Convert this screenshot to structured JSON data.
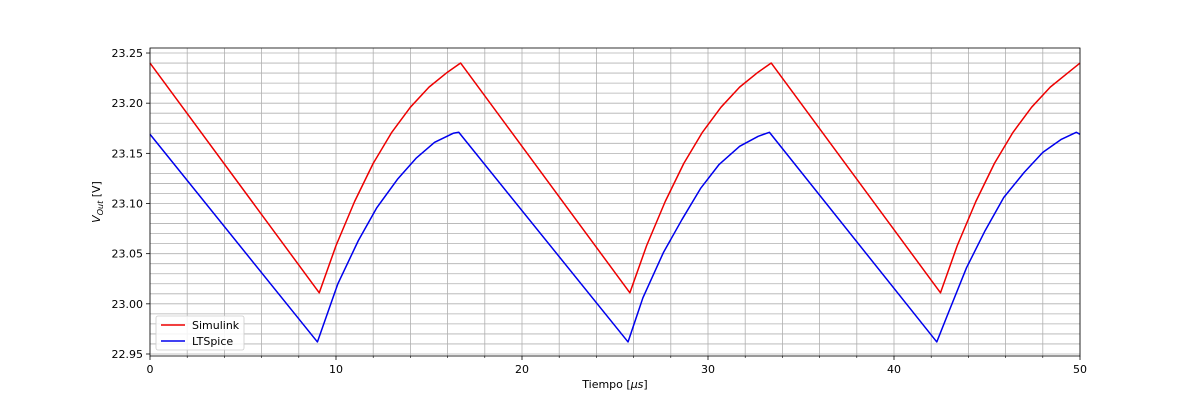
{
  "chart_data": {
    "type": "line",
    "xlabel_prefix": "Tiempo [",
    "xlabel_unit": "μs",
    "xlabel_suffix": "]",
    "ylabel_main": "V",
    "ylabel_sub": "Out",
    "ylabel_suffix": " [V]",
    "xlim": [
      0,
      50
    ],
    "ylim": [
      22.948,
      23.255
    ],
    "xticks": [
      0,
      10,
      20,
      30,
      40,
      50
    ],
    "xtick_labels": [
      "0",
      "10",
      "20",
      "30",
      "40",
      "50"
    ],
    "yticks": [
      22.95,
      23.0,
      23.05,
      23.1,
      23.15,
      23.2,
      23.25
    ],
    "ytick_labels": [
      "22.95",
      "23.00",
      "23.05",
      "23.10",
      "23.15",
      "23.20",
      "23.25"
    ],
    "grid": true,
    "legend_position": "bottom-left",
    "series": [
      {
        "name": "Simulink",
        "color": "#ee0000",
        "points": [
          [
            0,
            23.24
          ],
          [
            9.1,
            23.011
          ],
          [
            10.0,
            23.058
          ],
          [
            11.0,
            23.102
          ],
          [
            12.0,
            23.14
          ],
          [
            13.0,
            23.171
          ],
          [
            14.0,
            23.196
          ],
          [
            15.0,
            23.216
          ],
          [
            16.0,
            23.231
          ],
          [
            16.7,
            23.24
          ],
          [
            25.8,
            23.011
          ],
          [
            26.7,
            23.058
          ],
          [
            27.7,
            23.102
          ],
          [
            28.7,
            23.14
          ],
          [
            29.7,
            23.171
          ],
          [
            30.7,
            23.196
          ],
          [
            31.7,
            23.216
          ],
          [
            32.7,
            23.231
          ],
          [
            33.4,
            23.24
          ],
          [
            42.5,
            23.011
          ],
          [
            43.4,
            23.058
          ],
          [
            44.4,
            23.102
          ],
          [
            45.4,
            23.14
          ],
          [
            46.4,
            23.171
          ],
          [
            47.4,
            23.196
          ],
          [
            48.4,
            23.216
          ],
          [
            49.4,
            23.231
          ],
          [
            50.0,
            23.24
          ]
        ]
      },
      {
        "name": "LTSpice",
        "color": "#0000ee",
        "points": [
          [
            0,
            23.169
          ],
          [
            9.0,
            22.962
          ],
          [
            10.1,
            23.02
          ],
          [
            11.2,
            23.063
          ],
          [
            12.2,
            23.096
          ],
          [
            13.3,
            23.124
          ],
          [
            14.3,
            23.145
          ],
          [
            15.3,
            23.161
          ],
          [
            16.3,
            23.17
          ],
          [
            16.6,
            23.171
          ],
          [
            25.7,
            22.962
          ],
          [
            26.5,
            23.006
          ],
          [
            27.6,
            23.051
          ],
          [
            28.6,
            23.084
          ],
          [
            29.6,
            23.115
          ],
          [
            30.6,
            23.139
          ],
          [
            31.7,
            23.157
          ],
          [
            32.7,
            23.167
          ],
          [
            33.3,
            23.171
          ],
          [
            42.3,
            22.962
          ],
          [
            42.9,
            22.99
          ],
          [
            43.9,
            23.036
          ],
          [
            44.9,
            23.073
          ],
          [
            45.9,
            23.106
          ],
          [
            47.0,
            23.131
          ],
          [
            48.0,
            23.151
          ],
          [
            49.0,
            23.164
          ],
          [
            49.8,
            23.171
          ],
          [
            50.0,
            23.169
          ]
        ]
      }
    ]
  }
}
